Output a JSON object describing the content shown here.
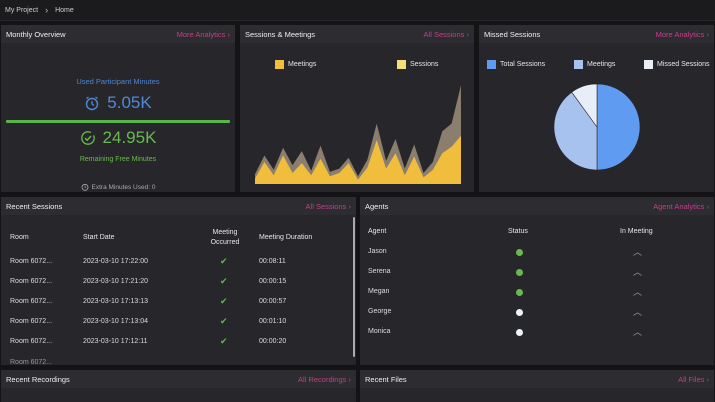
{
  "breadcrumb": {
    "project": "My Project",
    "page": "Home"
  },
  "monthly_overview": {
    "title": "Monthly Overview",
    "link": "More Analytics",
    "used_label": "Used Participant Minutes",
    "used_value": "5.05K",
    "remaining_value": "24.95K",
    "remaining_label": "Remaining Free Minutes",
    "extra_label": "Extra Minutes Used: 0",
    "colors": {
      "used": "#4e8ad8",
      "remaining": "#66bb4c"
    }
  },
  "sessions_meetings": {
    "title": "Sessions & Meetings",
    "link": "All Sessions",
    "legend": [
      {
        "label": "Meetings",
        "color": "#f0bd3c"
      },
      {
        "label": "Sessions",
        "color": "#f6dc7a"
      }
    ]
  },
  "missed_sessions": {
    "title": "Missed Sessions",
    "link": "More Analytics",
    "legend": [
      {
        "label": "Total Sessions",
        "color": "#5f9bf0"
      },
      {
        "label": "Meetings",
        "color": "#a8c2f0"
      },
      {
        "label": "Missed Sessions",
        "color": "#e8eef8"
      }
    ]
  },
  "chart_data": [
    {
      "type": "area",
      "series": [
        {
          "name": "Meetings",
          "values": [
            5,
            20,
            8,
            26,
            10,
            19,
            8,
            23,
            7,
            10,
            19,
            4,
            15,
            40,
            14,
            28,
            8,
            25,
            6,
            13,
            28,
            34,
            44
          ]
        },
        {
          "name": "Sessions",
          "values": [
            9,
            26,
            13,
            33,
            17,
            30,
            12,
            35,
            11,
            14,
            24,
            7,
            22,
            55,
            21,
            41,
            14,
            36,
            10,
            20,
            48,
            55,
            90
          ]
        }
      ]
    },
    {
      "type": "pie",
      "slices": [
        {
          "name": "Total Sessions",
          "value": 50,
          "color": "#5f9bf0"
        },
        {
          "name": "Meetings",
          "value": 40,
          "color": "#a8c2f0"
        },
        {
          "name": "Missed Sessions",
          "value": 10,
          "color": "#e8eef8"
        }
      ]
    }
  ],
  "recent_sessions": {
    "title": "Recent Sessions",
    "link": "All Sessions",
    "columns": [
      "Room",
      "Start Date",
      "Meeting Occurred",
      "Meeting Duration"
    ],
    "rows": [
      {
        "room": "Room 6072...",
        "start": "2023-03-10 17:22:00",
        "duration": "00:08:11"
      },
      {
        "room": "Room 6072...",
        "start": "2023-03-10 17:21:20",
        "duration": "00:00:15"
      },
      {
        "room": "Room 6072...",
        "start": "2023-03-10 17:13:13",
        "duration": "00:00:57"
      },
      {
        "room": "Room 6072...",
        "start": "2023-03-10 17:13:04",
        "duration": "00:01:10"
      },
      {
        "room": "Room 6072...",
        "start": "2023-03-10 17:12:11",
        "duration": "00:00:20"
      }
    ]
  },
  "agents": {
    "title": "Agents",
    "link": "Agent Analytics",
    "columns": [
      "Agent",
      "Status",
      "In Meeting"
    ],
    "rows": [
      {
        "name": "Jason",
        "status_color": "#66bb4c"
      },
      {
        "name": "Serena",
        "status_color": "#66bb4c"
      },
      {
        "name": "Megan",
        "status_color": "#66bb4c"
      },
      {
        "name": "George",
        "status_color": "#eef3fb"
      },
      {
        "name": "Monica",
        "status_color": "#eef3fb"
      }
    ]
  },
  "recent_recordings": {
    "title": "Recent Recordings",
    "link": "All Recordings"
  },
  "recent_files": {
    "title": "Recent Files",
    "link": "All Files"
  }
}
